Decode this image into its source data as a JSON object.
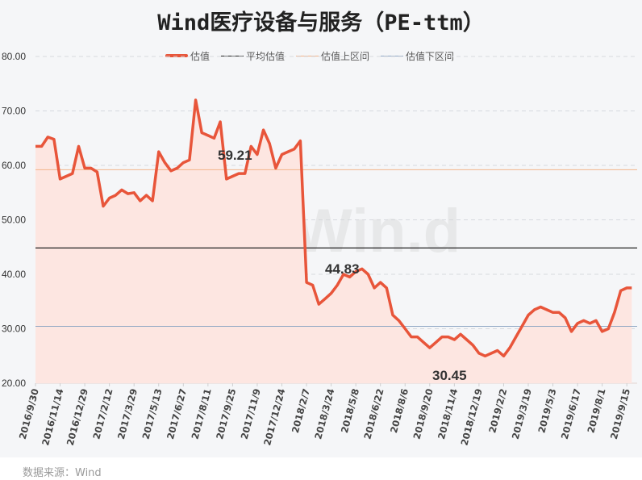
{
  "title": "Wind医疗设备与服务（PE-ttm）",
  "source": "数据来源：Wind",
  "watermark": "Win.d",
  "legend": [
    {
      "label": "估值",
      "color": "#e8553a"
    },
    {
      "label": "平均估值",
      "color": "#222222"
    },
    {
      "label": "估值上区间",
      "color": "#f2b48a"
    },
    {
      "label": "估值下区间",
      "color": "#8fa7c4"
    }
  ],
  "colors": {
    "line": "#e8553a",
    "fill": "#fde6e1",
    "mean": "#222222",
    "upper": "#f2b48a",
    "lower": "#8fa7c4",
    "grid": "#d6d9de"
  },
  "annotations": {
    "upper": "59.21",
    "mean": "44.83",
    "lower": "30.45"
  },
  "chart_data": {
    "type": "area",
    "title": "Wind医疗设备与服务（PE-ttm）",
    "xlabel": "",
    "ylabel": "",
    "ylim": [
      20,
      80
    ],
    "yticks": [
      "80.00",
      "70.00",
      "60.00",
      "50.00",
      "40.00",
      "30.00",
      "20.00"
    ],
    "grid": true,
    "legend_position": "top",
    "categories": [
      "2016/9/30",
      "2016/11/14",
      "2016/12/29",
      "2017/2/12",
      "2017/3/29",
      "2017/5/13",
      "2017/6/27",
      "2017/8/11",
      "2017/9/25",
      "2017/11/9",
      "2017/12/24",
      "2018/2/7",
      "2018/3/24",
      "2018/5/8",
      "2018/6/22",
      "2018/8/6",
      "2018/9/20",
      "2018/11/4",
      "2018/12/19",
      "2019/2/2",
      "2019/3/19",
      "2019/5/3",
      "2019/6/17",
      "2019/8/1",
      "2019/9/15"
    ],
    "series": [
      {
        "name": "估值",
        "x_index": [
          0,
          0.25,
          0.5,
          0.75,
          1.0,
          1.25,
          1.5,
          1.75,
          2.0,
          2.25,
          2.5,
          2.75,
          3.0,
          3.25,
          3.5,
          3.75,
          4.0,
          4.25,
          4.5,
          4.75,
          5.0,
          5.25,
          5.5,
          5.75,
          6.0,
          6.25,
          6.5,
          6.75,
          7.0,
          7.25,
          7.5,
          7.75,
          8.0,
          8.25,
          8.5,
          8.75,
          9.0,
          9.25,
          9.5,
          9.75,
          10.0,
          10.25,
          10.5,
          10.75,
          11.0,
          11.25,
          11.5,
          11.75,
          12.0,
          12.25,
          12.5,
          12.75,
          13.0,
          13.25,
          13.5,
          13.75,
          14.0,
          14.25,
          14.5,
          14.75,
          15.0,
          15.25,
          15.5,
          15.75,
          16.0,
          16.25,
          16.5,
          16.75,
          17.0,
          17.25,
          17.5,
          17.75,
          18.0,
          18.25,
          18.5,
          18.75,
          19.0,
          19.25,
          19.5,
          19.75,
          20.0,
          20.25,
          20.5,
          20.75,
          21.0,
          21.25,
          21.5,
          21.75,
          22.0,
          22.25,
          22.5,
          22.75,
          23.0,
          23.25,
          23.5,
          23.75,
          24.0,
          24.2
        ],
        "values": [
          63.5,
          63.5,
          65.2,
          64.8,
          57.5,
          58.0,
          58.5,
          63.5,
          59.5,
          59.5,
          58.8,
          52.5,
          54.0,
          54.5,
          55.5,
          54.8,
          55.0,
          53.5,
          54.5,
          53.5,
          62.5,
          60.5,
          59.0,
          59.5,
          60.5,
          61.0,
          72.0,
          66.0,
          65.5,
          65.0,
          68.0,
          57.5,
          58.0,
          58.5,
          58.5,
          63.5,
          62.0,
          66.5,
          64.0,
          59.5,
          62.0,
          62.5,
          63.0,
          64.5,
          38.5,
          38.0,
          34.5,
          35.5,
          36.5,
          38.0,
          40.0,
          39.5,
          40.5,
          41.0,
          40.0,
          37.5,
          38.5,
          37.5,
          32.5,
          31.5,
          30.0,
          28.5,
          28.5,
          27.5,
          26.5,
          27.5,
          28.5,
          28.5,
          28.0,
          29.0,
          28.0,
          27.0,
          25.5,
          25.0,
          25.5,
          26.0,
          25.0,
          26.5,
          28.5,
          30.5,
          32.5,
          33.5,
          34.0,
          33.5,
          33.0,
          33.0,
          32.0,
          29.5,
          31.0,
          31.5,
          31.0,
          31.5,
          29.5,
          30.0,
          33.0,
          37.0,
          37.5,
          37.5
        ]
      },
      {
        "name": "平均估值",
        "values_constant": 44.83
      },
      {
        "name": "估值上区间",
        "values_constant": 59.21
      },
      {
        "name": "估值下区间",
        "values_constant": 30.45
      }
    ]
  }
}
